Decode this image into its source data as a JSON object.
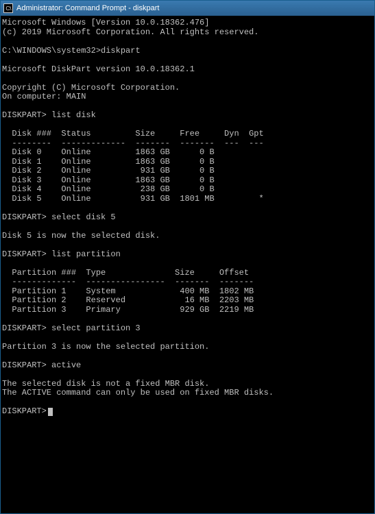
{
  "window": {
    "title": "Administrator: Command Prompt - diskpart",
    "titlebar_bg_start": "#3a7ab0",
    "titlebar_bg_end": "#2a6090",
    "border_color": "#1a5f8e"
  },
  "terminal": {
    "background_color": "#000000",
    "text_color": "#c0c0c0",
    "font_family": "Consolas",
    "font_size": 12
  },
  "header": {
    "version_line": "Microsoft Windows [Version 10.0.18362.476]",
    "copyright_line": "(c) 2019 Microsoft Corporation. All rights reserved."
  },
  "commands": {
    "initial_path": "C:\\WINDOWS\\system32>",
    "diskpart_cmd": "diskpart",
    "diskpart_version": "Microsoft DiskPart version 10.0.18362.1",
    "diskpart_copyright": "Copyright (C) Microsoft Corporation.",
    "on_computer": "On computer: MAIN",
    "prompt": "DISKPART>",
    "list_disk_cmd": "list disk",
    "select_disk_cmd": "select disk 5",
    "select_disk_result": "Disk 5 is now the selected disk.",
    "list_partition_cmd": "list partition",
    "select_partition_cmd": "select partition 3",
    "select_partition_result": "Partition 3 is now the selected partition.",
    "active_cmd": "active",
    "active_error1": "The selected disk is not a fixed MBR disk.",
    "active_error2": "The ACTIVE command can only be used on fixed MBR disks."
  },
  "disk_table": {
    "header": "  Disk ###  Status         Size     Free     Dyn  Gpt",
    "div": "  --------  -------------  -------  -------  ---  ---",
    "rows": [
      "  Disk 0    Online         1863 GB      0 B",
      "  Disk 1    Online         1863 GB      0 B",
      "  Disk 2    Online          931 GB      0 B",
      "  Disk 3    Online         1863 GB      0 B",
      "  Disk 4    Online          238 GB      0 B",
      "  Disk 5    Online          931 GB  1801 MB         *"
    ]
  },
  "partition_table": {
    "header": "  Partition ###  Type              Size     Offset",
    "div": "  -------------  ----------------  -------  -------",
    "rows": [
      "  Partition 1    System             400 MB  1802 MB",
      "  Partition 2    Reserved            16 MB  2203 MB",
      "  Partition 3    Primary            929 GB  2219 MB"
    ]
  }
}
